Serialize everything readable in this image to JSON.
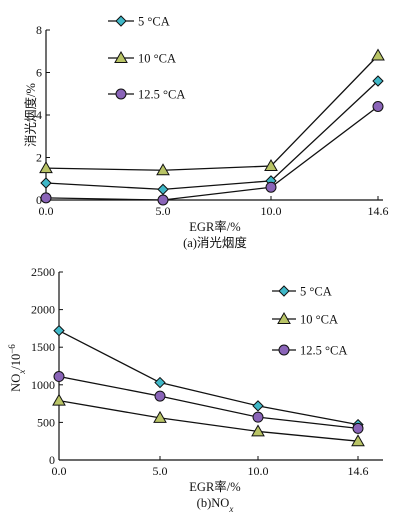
{
  "chart_data": [
    {
      "type": "line",
      "caption": "(a)消光烟度",
      "xlabel": "EGR率/%",
      "ylabel": "消光烟度/%",
      "x": [
        "0.0",
        "5.0",
        "10.0",
        "14.6"
      ],
      "yticks": [
        0,
        2,
        4,
        6,
        8
      ],
      "ylim": [
        0,
        8
      ],
      "legend_position": "top-left",
      "series": [
        {
          "name": "5 °CA",
          "marker": "diamond",
          "color": "#3fb8c8",
          "values": [
            0.8,
            0.5,
            0.9,
            5.6
          ]
        },
        {
          "name": "10 °CA",
          "marker": "triangle",
          "color": "#b9c466",
          "values": [
            1.5,
            1.4,
            1.6,
            6.8
          ]
        },
        {
          "name": "12.5 °CA",
          "marker": "circle",
          "color": "#8a64b8",
          "values": [
            0.1,
            0.0,
            0.6,
            4.4
          ]
        }
      ]
    },
    {
      "type": "line",
      "caption_parts": [
        "(b)NO",
        "x"
      ],
      "xlabel": "EGR率/%",
      "ylabel_parts": [
        "NO",
        "x",
        "/10",
        "−6"
      ],
      "x": [
        "0.0",
        "5.0",
        "10.0",
        "14.6"
      ],
      "yticks": [
        0,
        500,
        1000,
        1500,
        2000,
        2500
      ],
      "ylim": [
        0,
        2500
      ],
      "legend_position": "top-right",
      "series": [
        {
          "name": "5 °CA",
          "marker": "diamond",
          "color": "#3fb8c8",
          "values": [
            1720,
            1030,
            720,
            470
          ]
        },
        {
          "name": "10 °CA",
          "marker": "triangle",
          "color": "#b9c466",
          "values": [
            790,
            560,
            380,
            250
          ]
        },
        {
          "name": "12.5 °CA",
          "marker": "circle",
          "color": "#8a64b8",
          "values": [
            1110,
            850,
            570,
            420
          ]
        }
      ]
    }
  ]
}
